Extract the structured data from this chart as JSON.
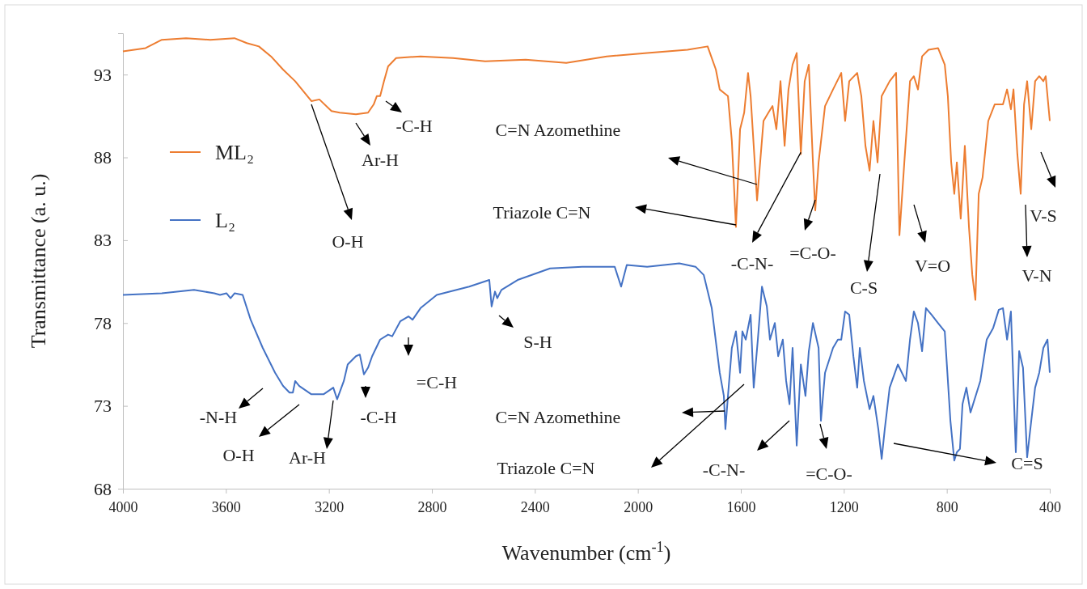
{
  "chart_data": {
    "type": "line",
    "xlabel": "Wavenumber (cm$^{-1}$)",
    "ylabel": "Transmittance (a. u.)",
    "xlim": [
      4000,
      400
    ],
    "xticks": [
      4000,
      3600,
      3200,
      2800,
      2400,
      2000,
      1600,
      1200,
      800,
      400
    ],
    "ylim": [
      68,
      95.5
    ],
    "yticks": [
      68,
      73,
      78,
      83,
      88,
      93
    ],
    "grid": false,
    "legend": "left",
    "marker": "none",
    "line_style": "solid",
    "series": [
      {
        "name": "ML₂",
        "color": "#ed7d31",
        "x": [
          4000,
          3912,
          3849,
          3755,
          3661,
          3567,
          3519,
          3472,
          3425,
          3378,
          3331,
          3268,
          3237,
          3190,
          3158,
          3095,
          3048,
          3026,
          3014,
          3001,
          2986,
          2970,
          2939,
          2844,
          2718,
          2593,
          2436,
          2278,
          2121,
          1964,
          1807,
          1729,
          1697,
          1682,
          1666,
          1650,
          1635,
          1619,
          1603,
          1587,
          1572,
          1562,
          1550,
          1537,
          1525,
          1512,
          1493,
          1477,
          1462,
          1446,
          1430,
          1415,
          1399,
          1383,
          1367,
          1352,
          1336,
          1320,
          1311,
          1298,
          1273,
          1242,
          1210,
          1195,
          1179,
          1148,
          1132,
          1116,
          1100,
          1085,
          1069,
          1053,
          1022,
          997,
          984,
          965,
          943,
          928,
          912,
          896,
          871,
          834,
          808,
          796,
          783,
          771,
          761,
          746,
          730,
          714,
          701,
          689,
          676,
          661,
          639,
          614,
          582,
          566,
          551,
          541,
          526,
          513,
          500,
          488,
          472,
          457,
          441,
          425,
          416,
          400
        ],
        "values": [
          94.4,
          94.6,
          95.1,
          95.2,
          95.1,
          95.2,
          94.9,
          94.7,
          94.1,
          93.3,
          92.6,
          91.4,
          91.5,
          90.8,
          90.7,
          90.6,
          90.7,
          91.2,
          91.7,
          91.7,
          92.6,
          93.5,
          94.0,
          94.1,
          94.0,
          93.8,
          93.9,
          93.7,
          94.1,
          94.3,
          94.5,
          94.7,
          93.3,
          92.1,
          91.9,
          91.7,
          89.0,
          83.8,
          89.7,
          90.7,
          93.1,
          91.7,
          88.7,
          85.4,
          87.7,
          90.2,
          90.7,
          91.1,
          89.7,
          92.6,
          88.7,
          92.1,
          93.6,
          94.3,
          88.2,
          92.6,
          93.6,
          87.7,
          84.8,
          87.7,
          91.1,
          92.1,
          93.1,
          90.2,
          92.6,
          93.1,
          91.7,
          88.7,
          87.2,
          90.2,
          87.7,
          91.7,
          92.6,
          93.1,
          83.3,
          87.7,
          92.6,
          92.9,
          92.1,
          94.1,
          94.5,
          94.6,
          93.6,
          91.7,
          87.7,
          85.8,
          87.7,
          84.3,
          88.7,
          83.8,
          80.9,
          79.4,
          85.8,
          86.8,
          90.2,
          91.2,
          91.2,
          92.1,
          90.9,
          92.1,
          88.2,
          85.8,
          91.2,
          92.6,
          89.7,
          92.6,
          92.9,
          92.6,
          92.9,
          90.2
        ]
      },
      {
        "name": "L₂",
        "color": "#4472c4",
        "x": [
          4000,
          3849,
          3724,
          3645,
          3623,
          3598,
          3582,
          3566,
          3535,
          3504,
          3457,
          3409,
          3378,
          3353,
          3340,
          3331,
          3315,
          3268,
          3221,
          3183,
          3168,
          3142,
          3127,
          3095,
          3080,
          3064,
          3048,
          3032,
          3001,
          2970,
          2954,
          2923,
          2891,
          2875,
          2844,
          2781,
          2655,
          2577,
          2568,
          2555,
          2546,
          2530,
          2467,
          2341,
          2216,
          2090,
          2065,
          2043,
          1964,
          1839,
          1776,
          1744,
          1713,
          1682,
          1666,
          1660,
          1650,
          1635,
          1619,
          1603,
          1594,
          1581,
          1562,
          1550,
          1534,
          1518,
          1499,
          1487,
          1468,
          1455,
          1437,
          1424,
          1411,
          1399,
          1383,
          1367,
          1349,
          1336,
          1320,
          1298,
          1289,
          1273,
          1242,
          1223,
          1210,
          1195,
          1179,
          1163,
          1148,
          1138,
          1122,
          1100,
          1085,
          1066,
          1053,
          1041,
          1022,
          990,
          959,
          943,
          928,
          912,
          896,
          881,
          859,
          834,
          808,
          786,
          771,
          761,
          749,
          739,
          724,
          708,
          670,
          645,
          620,
          598,
          582,
          566,
          551,
          532,
          519,
          504,
          488,
          472,
          457,
          441,
          425,
          409,
          400
        ],
        "values": [
          79.7,
          79.8,
          80.0,
          79.8,
          79.7,
          79.8,
          79.5,
          79.8,
          79.7,
          78.2,
          76.5,
          75.0,
          74.2,
          73.8,
          73.8,
          74.5,
          74.2,
          73.7,
          73.7,
          74.1,
          73.4,
          74.5,
          75.5,
          76.0,
          76.1,
          74.9,
          75.3,
          76.0,
          77.0,
          77.3,
          77.2,
          78.1,
          78.4,
          78.2,
          78.9,
          79.7,
          80.2,
          80.6,
          79.0,
          79.9,
          79.5,
          80.0,
          80.6,
          81.3,
          81.4,
          81.4,
          80.2,
          81.5,
          81.4,
          81.6,
          81.4,
          80.9,
          78.9,
          75.0,
          73.6,
          71.6,
          73.6,
          76.5,
          77.5,
          75.0,
          77.5,
          77.0,
          78.5,
          74.1,
          77.0,
          80.2,
          79.0,
          77.0,
          78.0,
          76.0,
          77.0,
          74.5,
          73.1,
          76.5,
          70.6,
          75.5,
          73.6,
          76.3,
          78.0,
          76.5,
          72.1,
          75.0,
          76.5,
          77.0,
          77.0,
          78.7,
          78.5,
          76.0,
          74.1,
          76.5,
          74.5,
          72.8,
          73.6,
          71.6,
          69.8,
          71.6,
          74.1,
          75.5,
          74.5,
          77.0,
          78.7,
          78.0,
          76.3,
          78.9,
          78.5,
          78.0,
          77.5,
          72.1,
          69.7,
          70.2,
          70.4,
          73.1,
          74.1,
          72.6,
          74.5,
          77.0,
          77.7,
          78.8,
          78.9,
          77.0,
          78.7,
          70.2,
          76.3,
          75.3,
          69.9,
          72.1,
          74.1,
          75.0,
          76.5,
          77.0,
          75.0
        ]
      }
    ],
    "annotations": [
      {
        "text": "O-H",
        "x": 3268,
        "y": 91.2
      },
      "Ar-H",
      "-C-H",
      "C=N Azomethine",
      "Triazole C=N",
      {
        "text": "-C-N-",
        "x": 1367,
        "y": 88.3
      },
      "=C-O-",
      "C-S",
      "V=O",
      "V-N",
      "V-S",
      "-N-H",
      "O-H",
      "Ar-H",
      "-C-H",
      "=C-H",
      "S-H",
      "C=N Azomethine",
      "Triazole C=N",
      "-C-N-",
      "=C-O-",
      "C=S"
    ]
  }
}
